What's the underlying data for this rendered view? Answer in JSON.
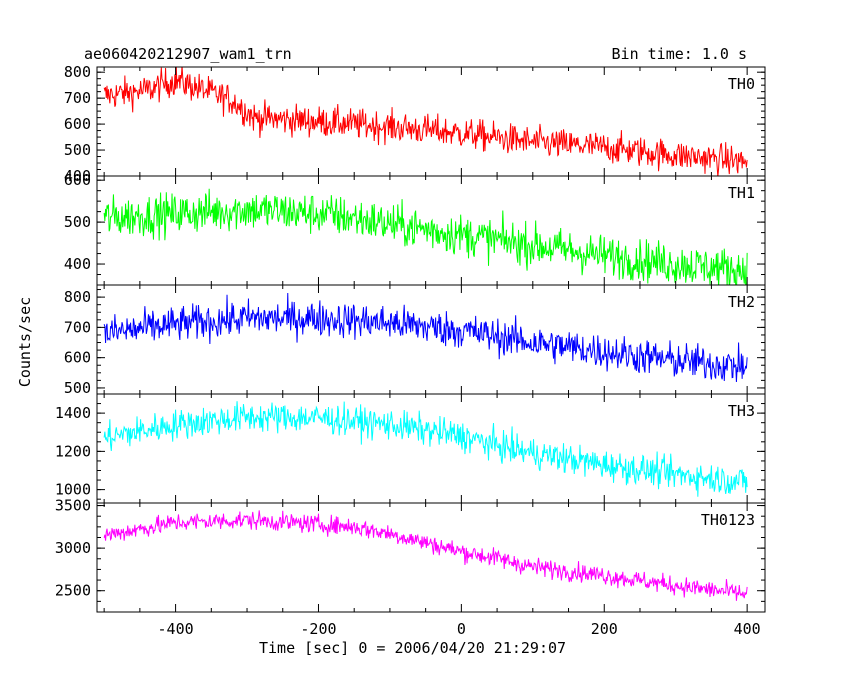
{
  "header": {
    "title": "ae060420212907_wam1_trn",
    "bin_time": "Bin time: 1.0 s"
  },
  "axes": {
    "xlabel": "Time [sec] 0 = 2006/04/20 21:29:07",
    "ylabel": "Counts/sec"
  },
  "chart_data": {
    "type": "line",
    "xlabel": "Time [sec] 0 = 2006/04/20 21:29:07",
    "ylabel": "Counts/sec",
    "xlim": [
      -510,
      425
    ],
    "x_ticks": [
      -400,
      -200,
      0,
      200,
      400
    ],
    "x_range": [
      -500,
      400
    ],
    "bin_time": 1.0,
    "panels": [
      {
        "name": "TH0",
        "color": "#ff0000",
        "ylim": [
          400,
          820
        ],
        "y_ticks": [
          400,
          500,
          600,
          700,
          800
        ],
        "trend": [
          [
            -500,
            710
          ],
          [
            -440,
            730
          ],
          [
            -400,
            770
          ],
          [
            -370,
            740
          ],
          [
            -320,
            690
          ],
          [
            -290,
            625
          ],
          [
            -200,
            610
          ],
          [
            -100,
            590
          ],
          [
            0,
            565
          ],
          [
            100,
            530
          ],
          [
            200,
            510
          ],
          [
            300,
            480
          ],
          [
            400,
            455
          ]
        ],
        "noise": 30
      },
      {
        "name": "TH1",
        "color": "#00ff00",
        "ylim": [
          350,
          610
        ],
        "y_ticks": [
          400,
          500,
          600
        ],
        "trend": [
          [
            -500,
            510
          ],
          [
            -400,
            520
          ],
          [
            -300,
            530
          ],
          [
            -200,
            520
          ],
          [
            -150,
            510
          ],
          [
            -100,
            495
          ],
          [
            0,
            470
          ],
          [
            100,
            445
          ],
          [
            200,
            420
          ],
          [
            300,
            400
          ],
          [
            400,
            385
          ]
        ],
        "noise": 25
      },
      {
        "name": "TH2",
        "color": "#0000ff",
        "ylim": [
          480,
          840
        ],
        "y_ticks": [
          500,
          600,
          700,
          800
        ],
        "trend": [
          [
            -500,
            680
          ],
          [
            -400,
            710
          ],
          [
            -300,
            730
          ],
          [
            -200,
            730
          ],
          [
            -100,
            715
          ],
          [
            0,
            690
          ],
          [
            100,
            650
          ],
          [
            200,
            620
          ],
          [
            300,
            590
          ],
          [
            400,
            570
          ]
        ],
        "noise": 30
      },
      {
        "name": "TH3",
        "color": "#00ffff",
        "ylim": [
          930,
          1500
        ],
        "y_ticks": [
          1000,
          1200,
          1400
        ],
        "trend": [
          [
            -500,
            1270
          ],
          [
            -400,
            1340
          ],
          [
            -300,
            1380
          ],
          [
            -200,
            1375
          ],
          [
            -100,
            1340
          ],
          [
            0,
            1280
          ],
          [
            50,
            1230
          ],
          [
            100,
            1190
          ],
          [
            200,
            1130
          ],
          [
            300,
            1080
          ],
          [
            400,
            1040
          ]
        ],
        "noise": 40
      },
      {
        "name": "TH0123",
        "color": "#ff00ff",
        "ylim": [
          2250,
          3530
        ],
        "y_ticks": [
          2500,
          3000,
          3500
        ],
        "trend": [
          [
            -500,
            3150
          ],
          [
            -400,
            3300
          ],
          [
            -300,
            3330
          ],
          [
            -200,
            3280
          ],
          [
            -150,
            3250
          ],
          [
            -100,
            3170
          ],
          [
            0,
            2960
          ],
          [
            50,
            2880
          ],
          [
            100,
            2780
          ],
          [
            200,
            2680
          ],
          [
            300,
            2560
          ],
          [
            400,
            2460
          ]
        ],
        "noise": 55
      }
    ]
  }
}
